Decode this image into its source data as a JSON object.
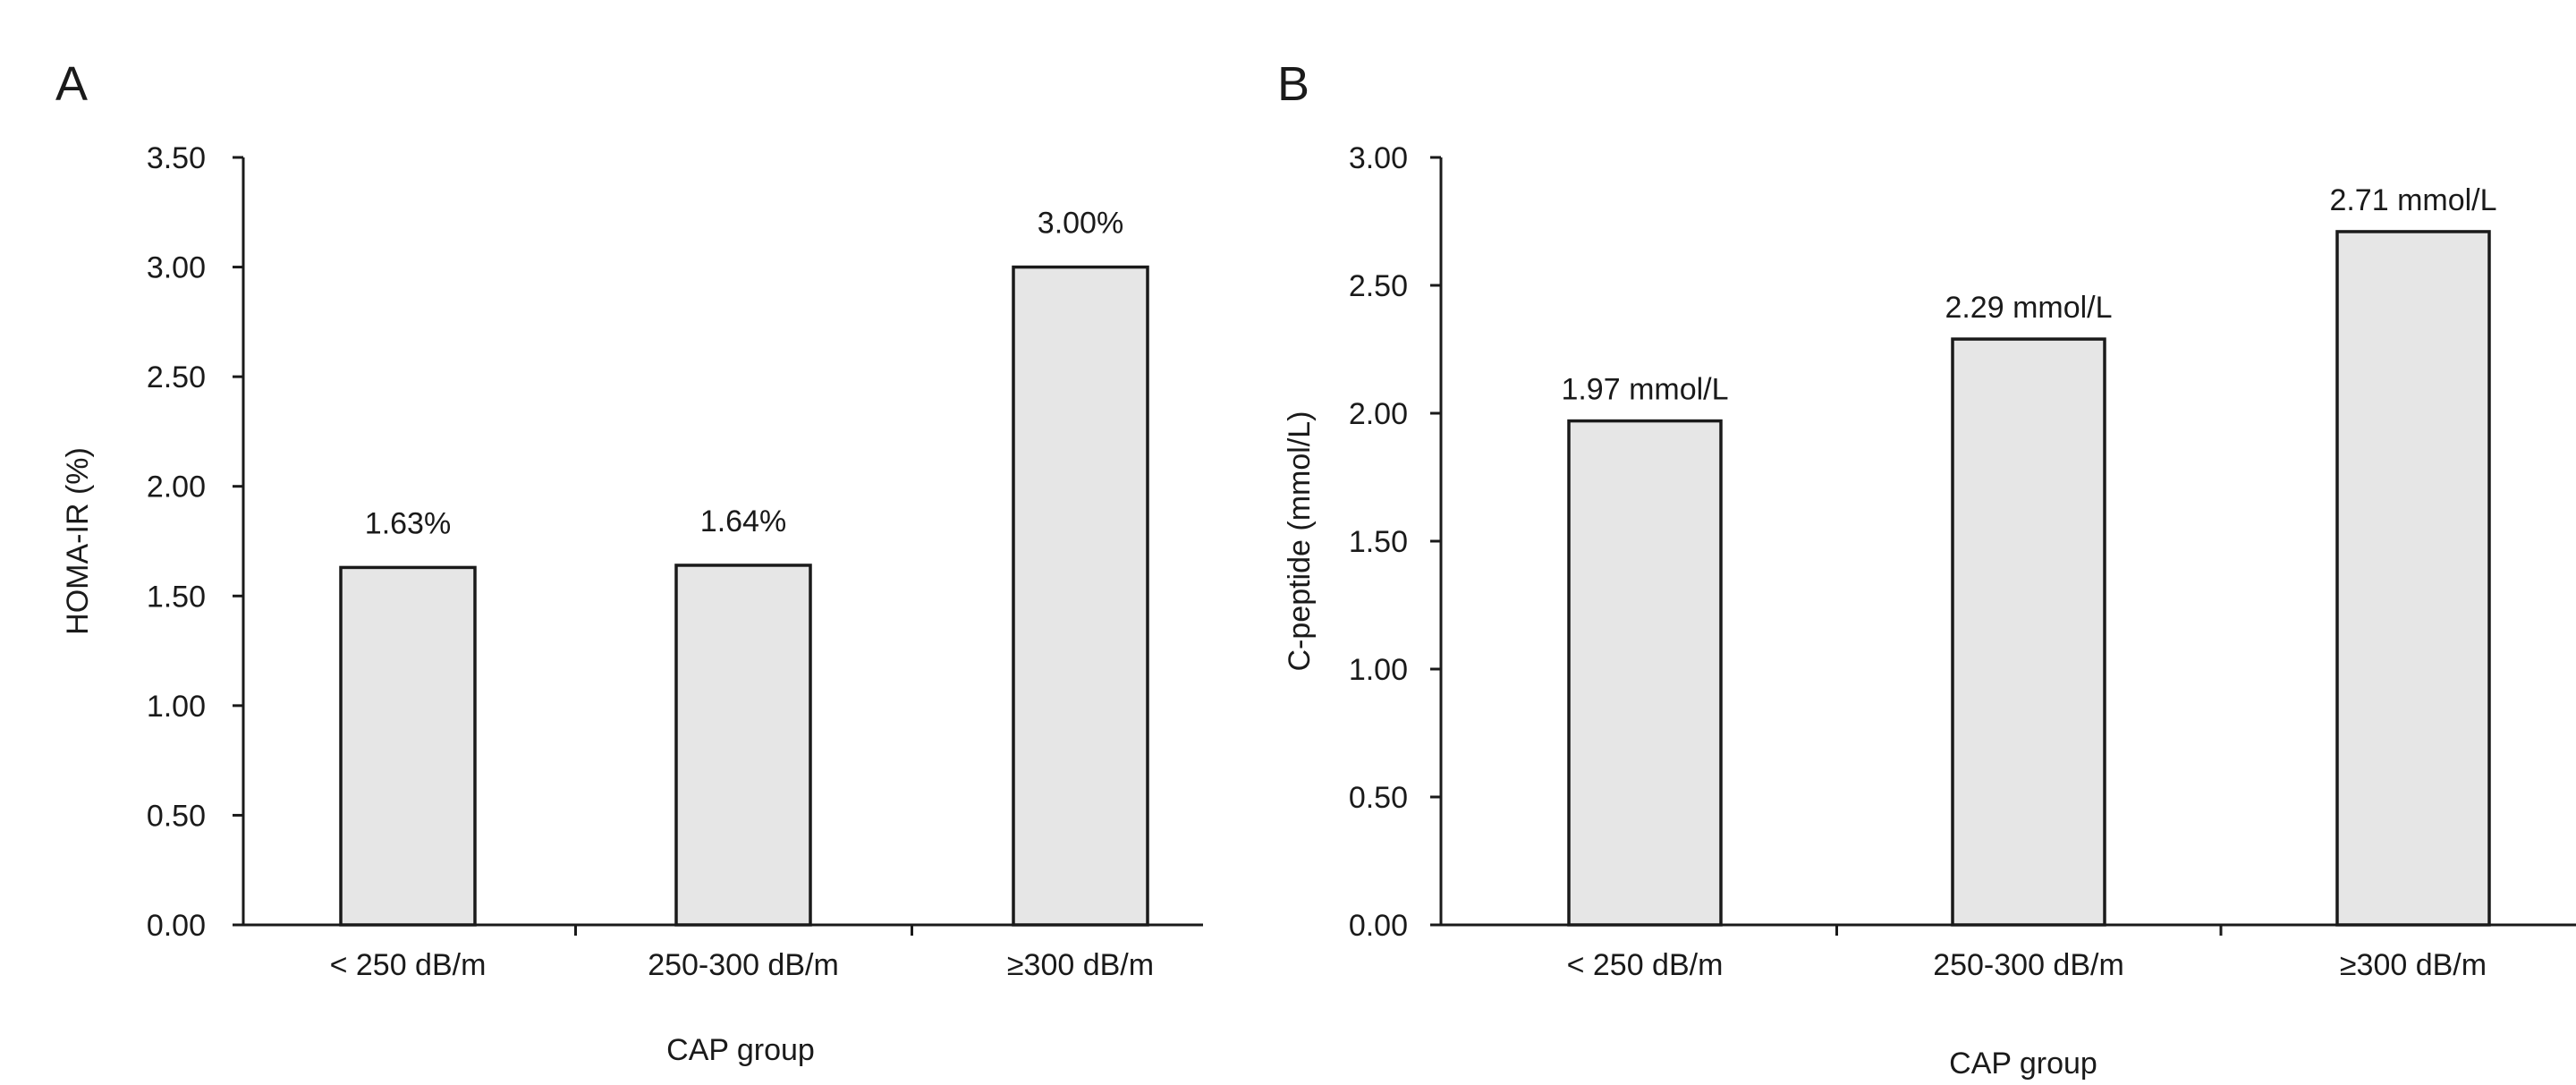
{
  "colors": {
    "bar_fill": "#e6e6e6",
    "bar_stroke": "#1a1a1a",
    "axis": "#1a1a1a",
    "text": "#1a1a1a",
    "background": "#ffffff"
  },
  "chart_data": [
    {
      "panel": "A",
      "type": "bar",
      "title": "",
      "categories": [
        "< 250 dB/m",
        "250-300 dB/m",
        "≥300 dB/m"
      ],
      "values": [
        1.63,
        1.64,
        3.0
      ],
      "data_labels": [
        "1.63%",
        "1.64%",
        "3.00%"
      ],
      "xlabel": "CAP group",
      "ylabel": "HOMA-IR  (%)",
      "ylim": [
        0,
        3.5
      ],
      "yticks": [
        0,
        0.5,
        1,
        1.5,
        2,
        2.5,
        3,
        3.5
      ],
      "ytick_labels": [
        "0.00",
        "0.50",
        "1.00",
        "1.50",
        "2.00",
        "2.50",
        "3.00",
        "3.50"
      ],
      "grid": false,
      "legend": "none"
    },
    {
      "panel": "B",
      "type": "bar",
      "title": "",
      "categories": [
        "< 250 dB/m",
        "250-300 dB/m",
        "≥300 dB/m"
      ],
      "values": [
        1.97,
        2.29,
        2.71
      ],
      "data_labels": [
        "1.97 mmol/L",
        "2.29 mmol/L",
        "2.71 mmol/L"
      ],
      "xlabel": "CAP group",
      "ylabel": "C-peptide (mmol/L)",
      "ylim": [
        0,
        3.0
      ],
      "yticks": [
        0,
        0.5,
        1,
        1.5,
        2,
        2.5,
        3
      ],
      "ytick_labels": [
        "0.00",
        "0.50",
        "1.00",
        "1.50",
        "2.00",
        "2.50",
        "3.00"
      ],
      "grid": false,
      "legend": "none"
    }
  ]
}
